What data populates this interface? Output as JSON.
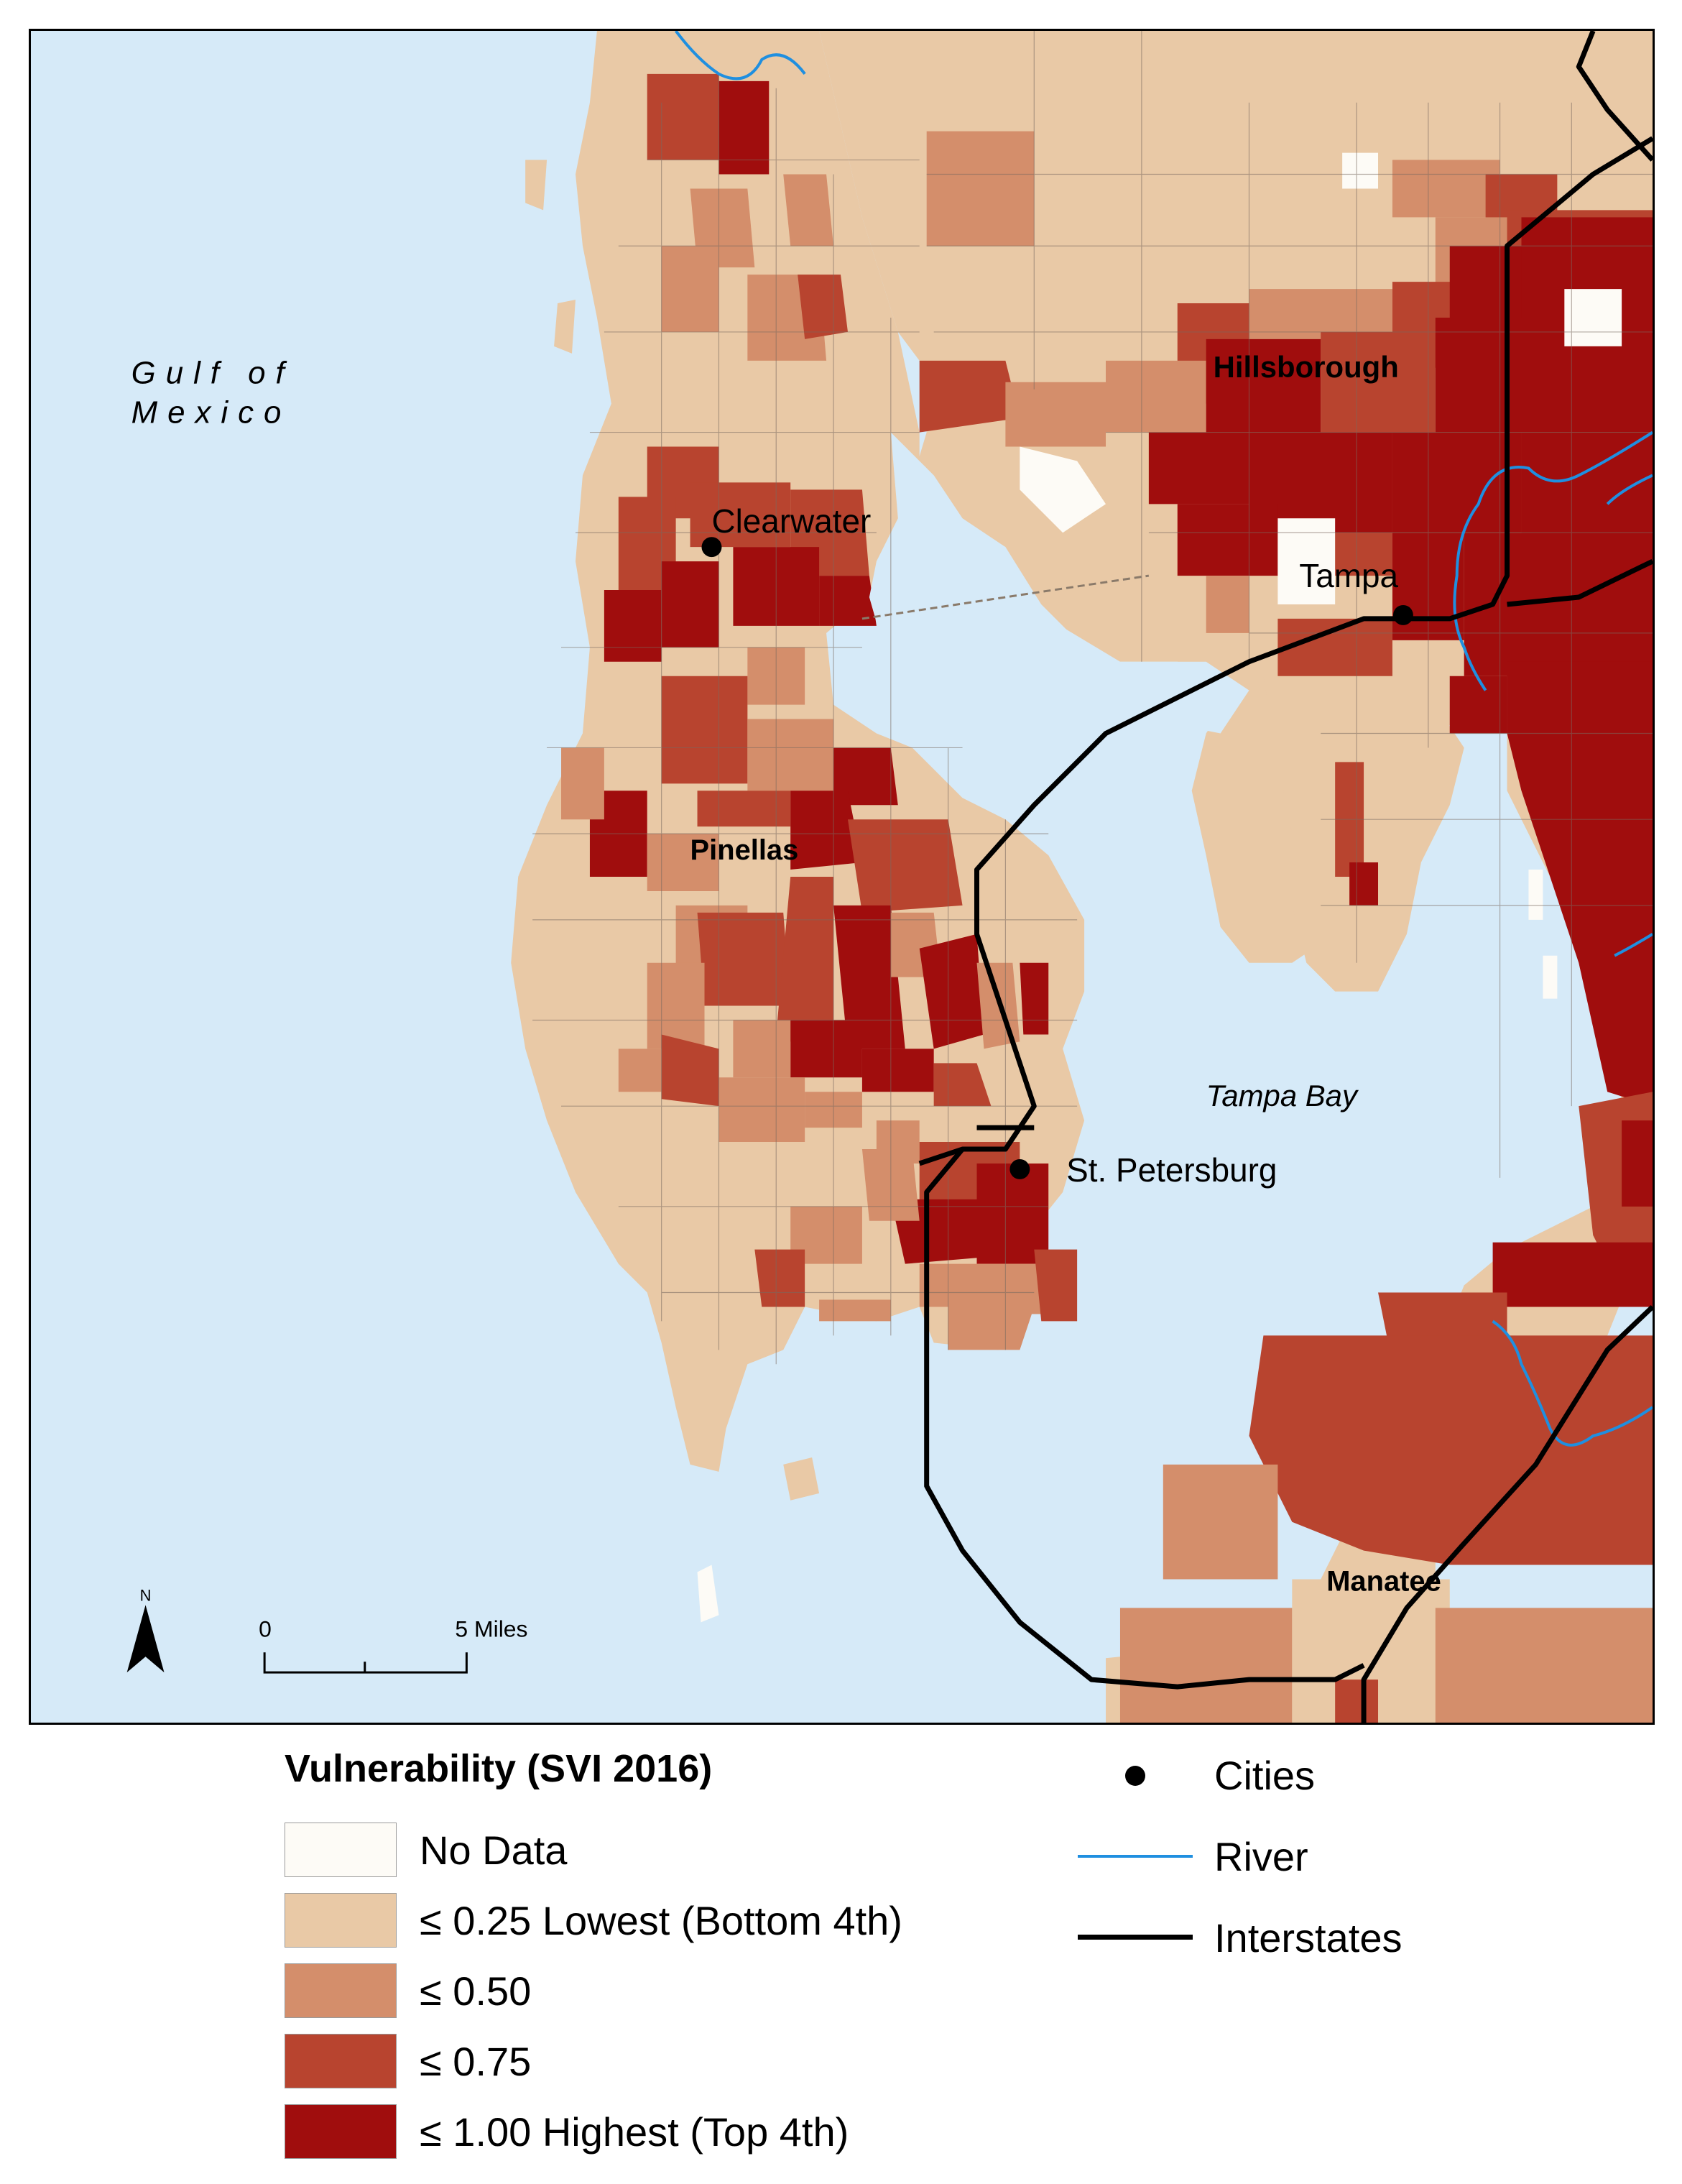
{
  "map": {
    "water_labels": {
      "gulf_line1": "Gulf of",
      "gulf_line2": "Mexico",
      "bay": "Tampa Bay"
    },
    "county_labels": {
      "hillsborough": "Hillsborough",
      "pinellas": "Pinellas",
      "manatee": "Manatee"
    },
    "city_labels": {
      "clearwater": "Clearwater",
      "tampa": "Tampa",
      "st_petersburg": "St. Petersburg"
    },
    "north_arrow": {
      "label": "N"
    },
    "scale_bar": {
      "start": "0",
      "end": "5 Miles"
    }
  },
  "legend": {
    "title": "Vulnerability (SVI 2016)",
    "classes": [
      {
        "label": "No Data",
        "color": "#fdfbf6"
      },
      {
        "label": "≤ 0.25 Lowest (Bottom 4th)",
        "color": "#e9c9a6"
      },
      {
        "label": "≤ 0.50",
        "color": "#d48e6b"
      },
      {
        "label": "≤ 0.75",
        "color": "#b8442f"
      },
      {
        "label": "≤ 1.00 Highest (Top 4th)",
        "color": "#a00d0d"
      }
    ],
    "symbols": {
      "cities": "Cities",
      "river": "River",
      "interstates": "Interstates"
    }
  },
  "colors": {
    "water": "#d6eaf8",
    "river": "#1f8fe0",
    "interstate": "#000000"
  }
}
